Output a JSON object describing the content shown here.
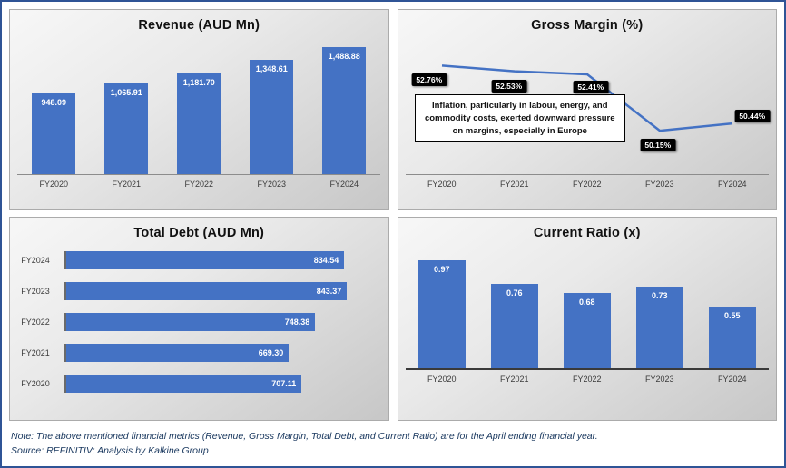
{
  "chart_data": [
    {
      "type": "bar",
      "orientation": "vertical",
      "title": "Revenue (AUD Mn)",
      "categories": [
        "FY2020",
        "FY2021",
        "FY2022",
        "FY2023",
        "FY2024"
      ],
      "values": [
        948.09,
        1065.91,
        1181.7,
        1348.61,
        1488.88
      ],
      "labels": [
        "948.09",
        "1,065.91",
        "1,181.70",
        "1,348.61",
        "1,488.88"
      ],
      "ylim": [
        0,
        1600
      ],
      "bar_color": "#4472C4",
      "label_color": "#ffffff",
      "grid": false,
      "legend": "none"
    },
    {
      "type": "line",
      "title": "Gross Margin (%)",
      "categories": [
        "FY2020",
        "FY2021",
        "FY2022",
        "FY2023",
        "FY2024"
      ],
      "values": [
        52.76,
        52.53,
        52.41,
        50.15,
        50.44
      ],
      "labels": [
        "52.76%",
        "52.53%",
        "52.41%",
        "50.15%",
        "50.44%"
      ],
      "ylim": [
        49.5,
        53.5
      ],
      "line_color": "#4472C4",
      "label_bg": "#000000",
      "label_color": "#ffffff",
      "annotation": "Inflation, particularly in labour, energy, and commodity costs, exerted downward pressure on margins, especially in Europe",
      "grid": false,
      "legend": "none"
    },
    {
      "type": "bar",
      "orientation": "horizontal",
      "title": "Total Debt (AUD Mn)",
      "categories": [
        "FY2024",
        "FY2023",
        "FY2022",
        "FY2021",
        "FY2020"
      ],
      "values": [
        834.54,
        843.37,
        748.38,
        669.3,
        707.11
      ],
      "labels": [
        "834.54",
        "843.37",
        "748.38",
        "669.30",
        "707.11"
      ],
      "xlim": [
        0,
        900
      ],
      "bar_color": "#4472C4",
      "label_color": "#ffffff",
      "grid": false,
      "legend": "none"
    },
    {
      "type": "bar",
      "orientation": "vertical",
      "title": "Current Ratio (x)",
      "categories": [
        "FY2020",
        "FY2021",
        "FY2022",
        "FY2023",
        "FY2024"
      ],
      "values": [
        0.97,
        0.76,
        0.68,
        0.73,
        0.55
      ],
      "labels": [
        "0.97",
        "0.76",
        "0.68",
        "0.73",
        "0.55"
      ],
      "ylim": [
        0,
        1.1
      ],
      "bar_color": "#4472C4",
      "label_color": "#ffffff",
      "grid": false,
      "legend": "none"
    }
  ],
  "footer": {
    "note": "Note: The above mentioned financial metrics (Revenue, Gross Margin, Total Debt, and Current Ratio) are for the April ending financial year.",
    "source": "Source: REFINITIV; Analysis by Kalkine Group"
  }
}
